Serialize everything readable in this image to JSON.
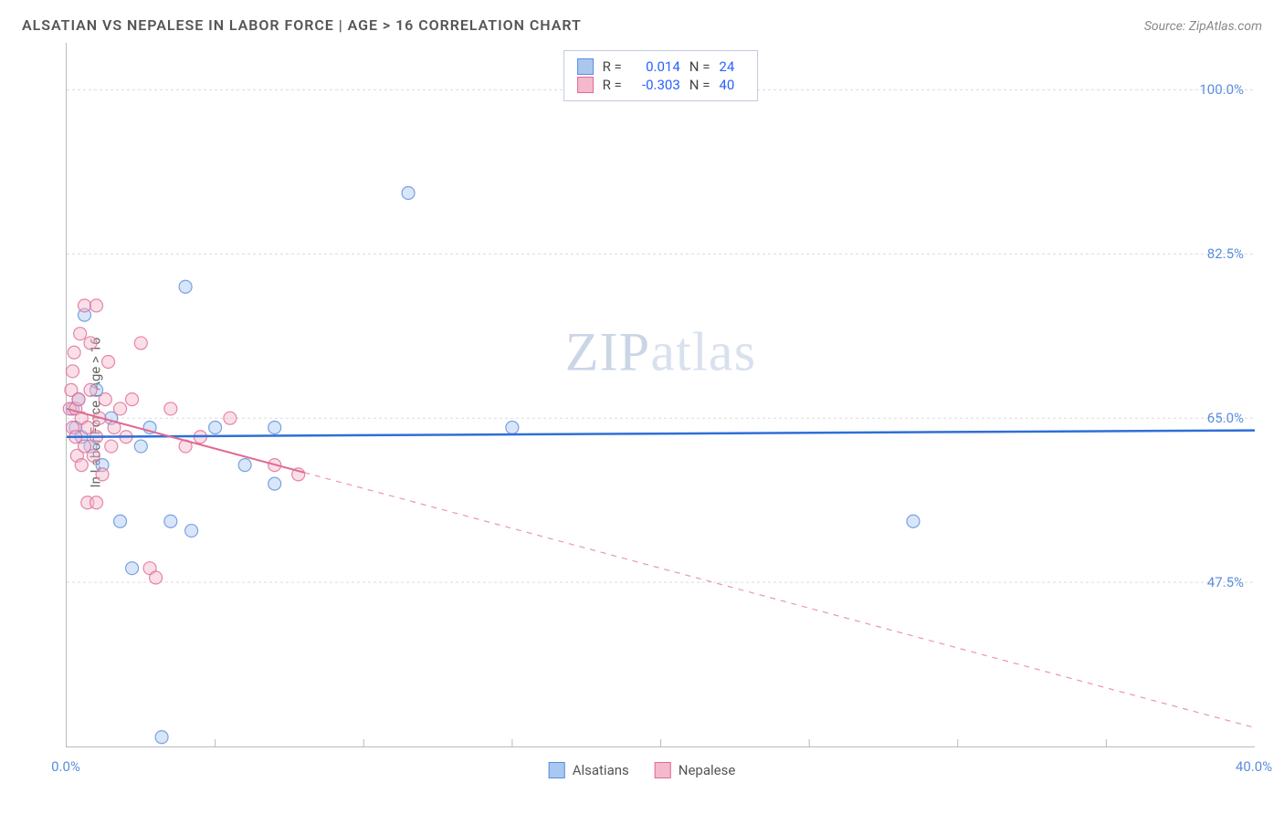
{
  "header": {
    "title": "ALSATIAN VS NEPALESE IN LABOR FORCE | AGE > 16 CORRELATION CHART",
    "source_label": "Source: ZipAtlas.com"
  },
  "watermark": {
    "text_a": "ZIP",
    "text_b": "atlas",
    "color": "#c5d2e5",
    "fontsize": 60
  },
  "chart": {
    "type": "scatter",
    "ylabel": "In Labor Force | Age > 16",
    "label_fontsize": 15,
    "background_color": "#ffffff",
    "grid_color": "#dcdcdc",
    "axis_color": "#bbbbbb",
    "xlim": [
      0,
      40
    ],
    "ylim": [
      30,
      105
    ],
    "x_ticks": [
      0,
      40
    ],
    "x_tick_labels": [
      "0.0%",
      "40.0%"
    ],
    "x_minor_ticks": [
      5,
      10,
      15,
      20,
      25,
      30,
      35
    ],
    "y_gridlines": [
      47.5,
      65.0,
      82.5,
      100.0
    ],
    "y_tick_labels": [
      "47.5%",
      "65.0%",
      "82.5%",
      "100.0%"
    ],
    "marker_radius": 7,
    "marker_opacity": 0.45,
    "series": [
      {
        "name": "Alsatians",
        "color_fill": "#a9c7ef",
        "color_stroke": "#5a8de0",
        "r_value": "0.014",
        "n_value": "24",
        "trend": {
          "x1": 0,
          "y1": 63.0,
          "x2": 40,
          "y2": 63.7,
          "dash_from_x": 40,
          "stroke": "#2f6fd6",
          "width": 2.5
        },
        "points": [
          [
            0.2,
            66
          ],
          [
            0.3,
            64
          ],
          [
            0.4,
            67
          ],
          [
            0.5,
            63
          ],
          [
            0.6,
            76
          ],
          [
            0.8,
            62
          ],
          [
            1.0,
            68
          ],
          [
            1.2,
            60
          ],
          [
            1.5,
            65
          ],
          [
            1.8,
            54
          ],
          [
            2.2,
            49
          ],
          [
            2.5,
            62
          ],
          [
            2.8,
            64
          ],
          [
            3.5,
            54
          ],
          [
            4.0,
            79
          ],
          [
            4.2,
            53
          ],
          [
            5.0,
            64
          ],
          [
            6.0,
            60
          ],
          [
            7.0,
            64
          ],
          [
            7.0,
            58
          ],
          [
            11.5,
            89
          ],
          [
            15.0,
            64
          ],
          [
            28.5,
            54
          ],
          [
            3.2,
            31
          ]
        ]
      },
      {
        "name": "Nepalese",
        "color_fill": "#f4b9cc",
        "color_stroke": "#e06a92",
        "r_value": "-0.303",
        "n_value": "40",
        "trend": {
          "x1": 0,
          "y1": 66.0,
          "x2": 40,
          "y2": 32.0,
          "dash_from_x": 8,
          "stroke": "#e06a92",
          "width": 2
        },
        "points": [
          [
            0.1,
            66
          ],
          [
            0.15,
            68
          ],
          [
            0.2,
            70
          ],
          [
            0.2,
            64
          ],
          [
            0.25,
            72
          ],
          [
            0.3,
            66
          ],
          [
            0.3,
            63
          ],
          [
            0.35,
            61
          ],
          [
            0.4,
            67
          ],
          [
            0.45,
            74
          ],
          [
            0.5,
            65
          ],
          [
            0.5,
            60
          ],
          [
            0.6,
            62
          ],
          [
            0.6,
            77
          ],
          [
            0.7,
            64
          ],
          [
            0.7,
            56
          ],
          [
            0.8,
            68
          ],
          [
            0.8,
            73
          ],
          [
            0.9,
            61
          ],
          [
            1.0,
            63
          ],
          [
            1.0,
            77
          ],
          [
            1.1,
            65
          ],
          [
            1.2,
            59
          ],
          [
            1.3,
            67
          ],
          [
            1.4,
            71
          ],
          [
            1.5,
            62
          ],
          [
            1.6,
            64
          ],
          [
            1.8,
            66
          ],
          [
            1.0,
            56
          ],
          [
            2.0,
            63
          ],
          [
            2.2,
            67
          ],
          [
            2.5,
            73
          ],
          [
            2.8,
            49
          ],
          [
            3.0,
            48
          ],
          [
            3.5,
            66
          ],
          [
            4.0,
            62
          ],
          [
            5.5,
            65
          ],
          [
            7.0,
            60
          ],
          [
            7.8,
            59
          ],
          [
            4.5,
            63
          ]
        ]
      }
    ],
    "legend_bottom": [
      "Alsatians",
      "Nepalese"
    ],
    "legend_top": {
      "r_prefix": "R =",
      "n_prefix": "N ="
    }
  }
}
